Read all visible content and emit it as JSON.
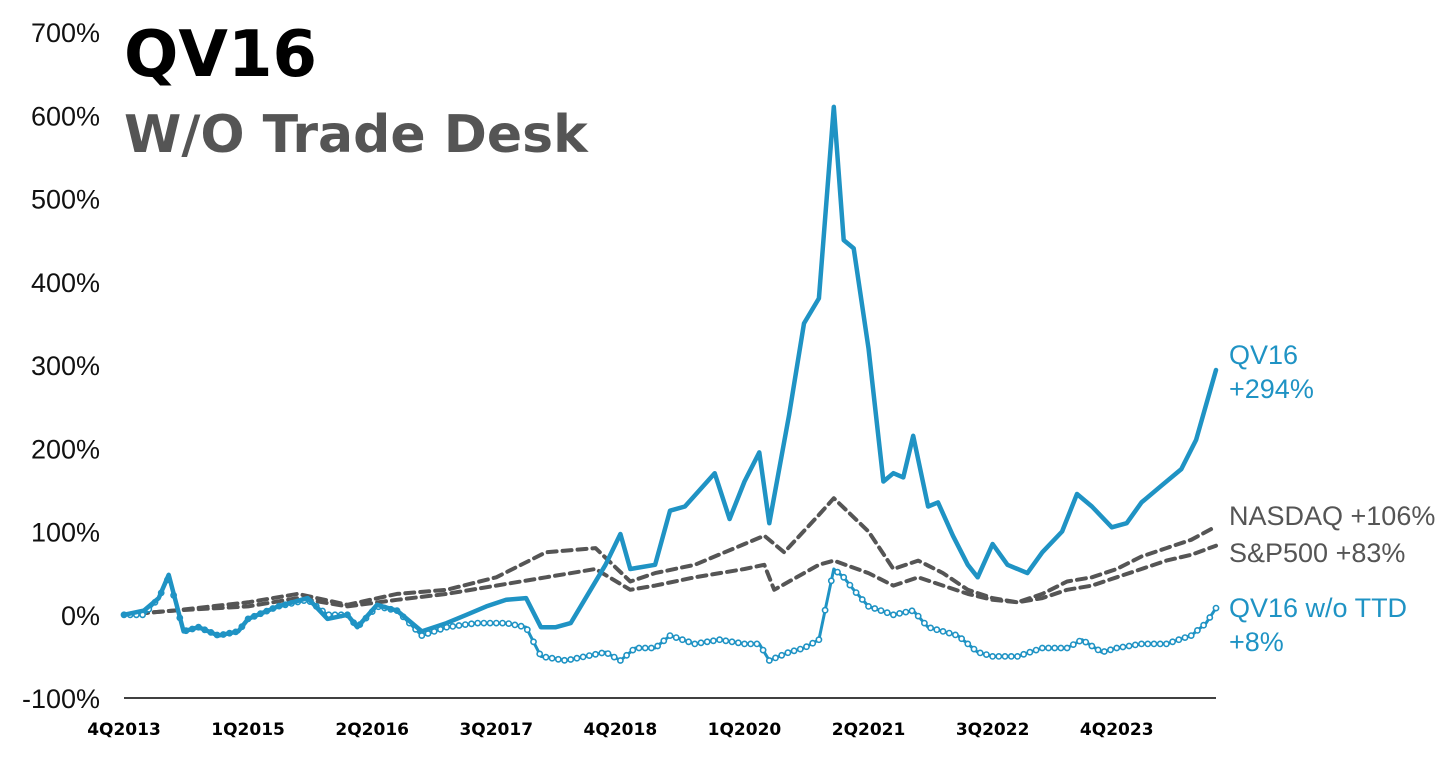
{
  "chart_data": {
    "type": "line",
    "title": "QV16",
    "subtitle": "W/O Trade Desk",
    "xlabel": "",
    "ylabel": "",
    "ylim": [
      -100,
      700
    ],
    "y_ticks": [
      "700%",
      "600%",
      "500%",
      "400%",
      "300%",
      "200%",
      "100%",
      "0%",
      "-100%"
    ],
    "x_tick_labels": [
      "4Q2013",
      "1Q2015",
      "2Q2016",
      "3Q2017",
      "4Q2018",
      "1Q2020",
      "2Q2021",
      "3Q2022",
      "4Q2023"
    ],
    "x_tick_values": [
      2013.75,
      2015.0,
      2016.25,
      2017.5,
      2018.75,
      2020.0,
      2021.25,
      2022.5,
      2023.75
    ],
    "xlim": [
      2013.75,
      2024.75
    ],
    "grid": false,
    "legend": "end-of-line labels on right",
    "series": [
      {
        "name": "QV16",
        "end_label": [
          "QV16",
          "+294%"
        ],
        "color": "#1f93c4",
        "style": "solid",
        "points": [
          [
            2013.75,
            0
          ],
          [
            2013.95,
            5
          ],
          [
            2014.1,
            20
          ],
          [
            2014.2,
            48
          ],
          [
            2014.35,
            -20
          ],
          [
            2014.5,
            -15
          ],
          [
            2014.7,
            -25
          ],
          [
            2014.9,
            -20
          ],
          [
            2015.0,
            -5
          ],
          [
            2015.3,
            10
          ],
          [
            2015.6,
            20
          ],
          [
            2015.8,
            -5
          ],
          [
            2016.0,
            0
          ],
          [
            2016.1,
            -15
          ],
          [
            2016.3,
            12
          ],
          [
            2016.5,
            5
          ],
          [
            2016.75,
            -20
          ],
          [
            2017.0,
            -10
          ],
          [
            2017.2,
            0
          ],
          [
            2017.4,
            10
          ],
          [
            2017.6,
            18
          ],
          [
            2017.8,
            20
          ],
          [
            2017.95,
            -15
          ],
          [
            2018.1,
            -15
          ],
          [
            2018.25,
            -10
          ],
          [
            2018.45,
            30
          ],
          [
            2018.6,
            60
          ],
          [
            2018.75,
            97
          ],
          [
            2018.85,
            55
          ],
          [
            2019.1,
            60
          ],
          [
            2019.25,
            125
          ],
          [
            2019.4,
            130
          ],
          [
            2019.55,
            150
          ],
          [
            2019.7,
            170
          ],
          [
            2019.85,
            115
          ],
          [
            2020.0,
            160
          ],
          [
            2020.15,
            195
          ],
          [
            2020.25,
            110
          ],
          [
            2020.45,
            240
          ],
          [
            2020.6,
            350
          ],
          [
            2020.75,
            380
          ],
          [
            2020.9,
            610
          ],
          [
            2021.0,
            450
          ],
          [
            2021.1,
            440
          ],
          [
            2021.25,
            320
          ],
          [
            2021.4,
            160
          ],
          [
            2021.5,
            170
          ],
          [
            2021.6,
            165
          ],
          [
            2021.7,
            215
          ],
          [
            2021.85,
            130
          ],
          [
            2021.95,
            135
          ],
          [
            2022.1,
            95
          ],
          [
            2022.25,
            60
          ],
          [
            2022.35,
            45
          ],
          [
            2022.5,
            85
          ],
          [
            2022.65,
            60
          ],
          [
            2022.85,
            50
          ],
          [
            2023.0,
            75
          ],
          [
            2023.2,
            100
          ],
          [
            2023.35,
            145
          ],
          [
            2023.5,
            130
          ],
          [
            2023.7,
            105
          ],
          [
            2023.85,
            110
          ],
          [
            2024.0,
            135
          ],
          [
            2024.2,
            155
          ],
          [
            2024.4,
            175
          ],
          [
            2024.55,
            210
          ],
          [
            2024.75,
            294
          ]
        ]
      },
      {
        "name": "NASDAQ",
        "end_label": [
          "NASDAQ +106%"
        ],
        "color": "#555555",
        "style": "dashed",
        "points": [
          [
            2013.75,
            0
          ],
          [
            2014.25,
            5
          ],
          [
            2015.0,
            15
          ],
          [
            2015.5,
            25
          ],
          [
            2016.0,
            12
          ],
          [
            2016.5,
            25
          ],
          [
            2017.0,
            30
          ],
          [
            2017.5,
            45
          ],
          [
            2018.0,
            75
          ],
          [
            2018.5,
            80
          ],
          [
            2018.85,
            40
          ],
          [
            2019.1,
            50
          ],
          [
            2019.5,
            60
          ],
          [
            2020.0,
            85
          ],
          [
            2020.2,
            95
          ],
          [
            2020.4,
            75
          ],
          [
            2020.75,
            120
          ],
          [
            2020.9,
            140
          ],
          [
            2021.25,
            100
          ],
          [
            2021.5,
            55
          ],
          [
            2021.75,
            65
          ],
          [
            2022.0,
            50
          ],
          [
            2022.25,
            30
          ],
          [
            2022.5,
            20
          ],
          [
            2022.75,
            15
          ],
          [
            2023.0,
            25
          ],
          [
            2023.25,
            40
          ],
          [
            2023.5,
            45
          ],
          [
            2023.75,
            55
          ],
          [
            2024.0,
            70
          ],
          [
            2024.25,
            80
          ],
          [
            2024.5,
            90
          ],
          [
            2024.75,
            106
          ]
        ]
      },
      {
        "name": "S&P500",
        "end_label": [
          "S&P500 +83%"
        ],
        "color": "#555555",
        "style": "dashed",
        "points": [
          [
            2013.75,
            0
          ],
          [
            2014.25,
            5
          ],
          [
            2015.0,
            10
          ],
          [
            2015.5,
            20
          ],
          [
            2016.0,
            10
          ],
          [
            2016.5,
            18
          ],
          [
            2017.0,
            25
          ],
          [
            2017.5,
            35
          ],
          [
            2018.0,
            45
          ],
          [
            2018.5,
            55
          ],
          [
            2018.85,
            30
          ],
          [
            2019.1,
            35
          ],
          [
            2019.5,
            45
          ],
          [
            2020.0,
            55
          ],
          [
            2020.2,
            60
          ],
          [
            2020.3,
            30
          ],
          [
            2020.75,
            60
          ],
          [
            2020.9,
            65
          ],
          [
            2021.25,
            50
          ],
          [
            2021.5,
            35
          ],
          [
            2021.75,
            45
          ],
          [
            2022.0,
            35
          ],
          [
            2022.25,
            25
          ],
          [
            2022.5,
            18
          ],
          [
            2022.75,
            15
          ],
          [
            2023.0,
            20
          ],
          [
            2023.25,
            30
          ],
          [
            2023.5,
            35
          ],
          [
            2023.75,
            45
          ],
          [
            2024.0,
            55
          ],
          [
            2024.25,
            65
          ],
          [
            2024.5,
            72
          ],
          [
            2024.75,
            83
          ]
        ]
      },
      {
        "name": "QV16 w/o TTD",
        "end_label": [
          "QV16 w/o TTD",
          "+8%"
        ],
        "color": "#1f93c4",
        "style": "solid-markers",
        "points": [
          [
            2013.75,
            0
          ],
          [
            2013.95,
            0
          ],
          [
            2014.1,
            20
          ],
          [
            2014.2,
            45
          ],
          [
            2014.35,
            -20
          ],
          [
            2014.5,
            -15
          ],
          [
            2014.7,
            -25
          ],
          [
            2014.9,
            -20
          ],
          [
            2015.0,
            -5
          ],
          [
            2015.3,
            10
          ],
          [
            2015.6,
            18
          ],
          [
            2015.8,
            0
          ],
          [
            2016.0,
            0
          ],
          [
            2016.1,
            -15
          ],
          [
            2016.3,
            10
          ],
          [
            2016.5,
            5
          ],
          [
            2016.75,
            -25
          ],
          [
            2017.0,
            -15
          ],
          [
            2017.3,
            -10
          ],
          [
            2017.6,
            -10
          ],
          [
            2017.8,
            -15
          ],
          [
            2017.95,
            -50
          ],
          [
            2018.2,
            -55
          ],
          [
            2018.4,
            -50
          ],
          [
            2018.6,
            -45
          ],
          [
            2018.75,
            -55
          ],
          [
            2018.9,
            -40
          ],
          [
            2019.1,
            -40
          ],
          [
            2019.25,
            -25
          ],
          [
            2019.5,
            -35
          ],
          [
            2019.75,
            -30
          ],
          [
            2020.0,
            -35
          ],
          [
            2020.15,
            -35
          ],
          [
            2020.25,
            -55
          ],
          [
            2020.45,
            -45
          ],
          [
            2020.6,
            -40
          ],
          [
            2020.75,
            -30
          ],
          [
            2020.9,
            55
          ],
          [
            2021.0,
            45
          ],
          [
            2021.1,
            30
          ],
          [
            2021.25,
            10
          ],
          [
            2021.5,
            0
          ],
          [
            2021.7,
            5
          ],
          [
            2021.85,
            -15
          ],
          [
            2022.0,
            -20
          ],
          [
            2022.15,
            -25
          ],
          [
            2022.35,
            -45
          ],
          [
            2022.5,
            -50
          ],
          [
            2022.75,
            -50
          ],
          [
            2023.0,
            -40
          ],
          [
            2023.25,
            -40
          ],
          [
            2023.4,
            -30
          ],
          [
            2023.6,
            -45
          ],
          [
            2023.75,
            -40
          ],
          [
            2024.0,
            -35
          ],
          [
            2024.25,
            -35
          ],
          [
            2024.5,
            -25
          ],
          [
            2024.65,
            -10
          ],
          [
            2024.75,
            8
          ]
        ]
      }
    ]
  }
}
